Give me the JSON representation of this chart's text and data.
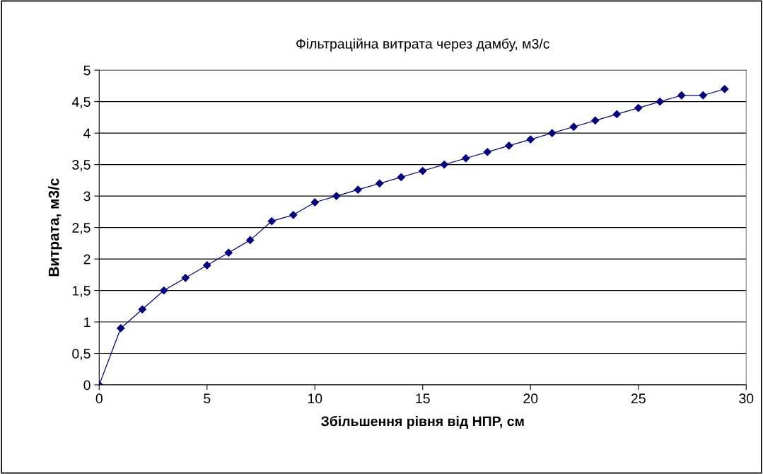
{
  "chart_data": {
    "type": "line",
    "title": "Фільтраційна витрата через дамбу, м3/с",
    "xlabel": "Збільшення рівня від НПР, см",
    "ylabel": "Витрата, м3/с",
    "x": [
      0,
      1,
      2,
      3,
      4,
      5,
      6,
      7,
      8,
      9,
      10,
      11,
      12,
      13,
      14,
      15,
      16,
      17,
      18,
      19,
      20,
      21,
      22,
      23,
      24,
      25,
      26,
      27,
      28,
      29
    ],
    "series": [
      {
        "color": "#000080",
        "values": [
          0,
          0.9,
          1.2,
          1.5,
          1.7,
          1.9,
          2.1,
          2.3,
          2.6,
          2.7,
          2.9,
          3.0,
          3.1,
          3.2,
          3.3,
          3.4,
          3.5,
          3.6,
          3.7,
          3.8,
          3.9,
          4.0,
          4.1,
          4.2,
          4.3,
          4.4,
          4.5,
          4.6,
          4.6,
          4.7
        ]
      }
    ],
    "xlim": [
      0,
      30
    ],
    "xticks": [
      0,
      5,
      10,
      15,
      20,
      25,
      30
    ],
    "ylim": [
      0,
      5
    ],
    "yticks": [
      0,
      {
        "value": 0.5,
        "label": "0,5"
      },
      1,
      {
        "value": 1.5,
        "label": "1,5"
      },
      2,
      {
        "value": 2.5,
        "label": "2,5"
      },
      3,
      {
        "value": 3.5,
        "label": "3,5"
      },
      4,
      {
        "value": 4.5,
        "label": "4,5"
      },
      5
    ],
    "grid": "y",
    "marker": "diamond",
    "line_style": "solid"
  }
}
